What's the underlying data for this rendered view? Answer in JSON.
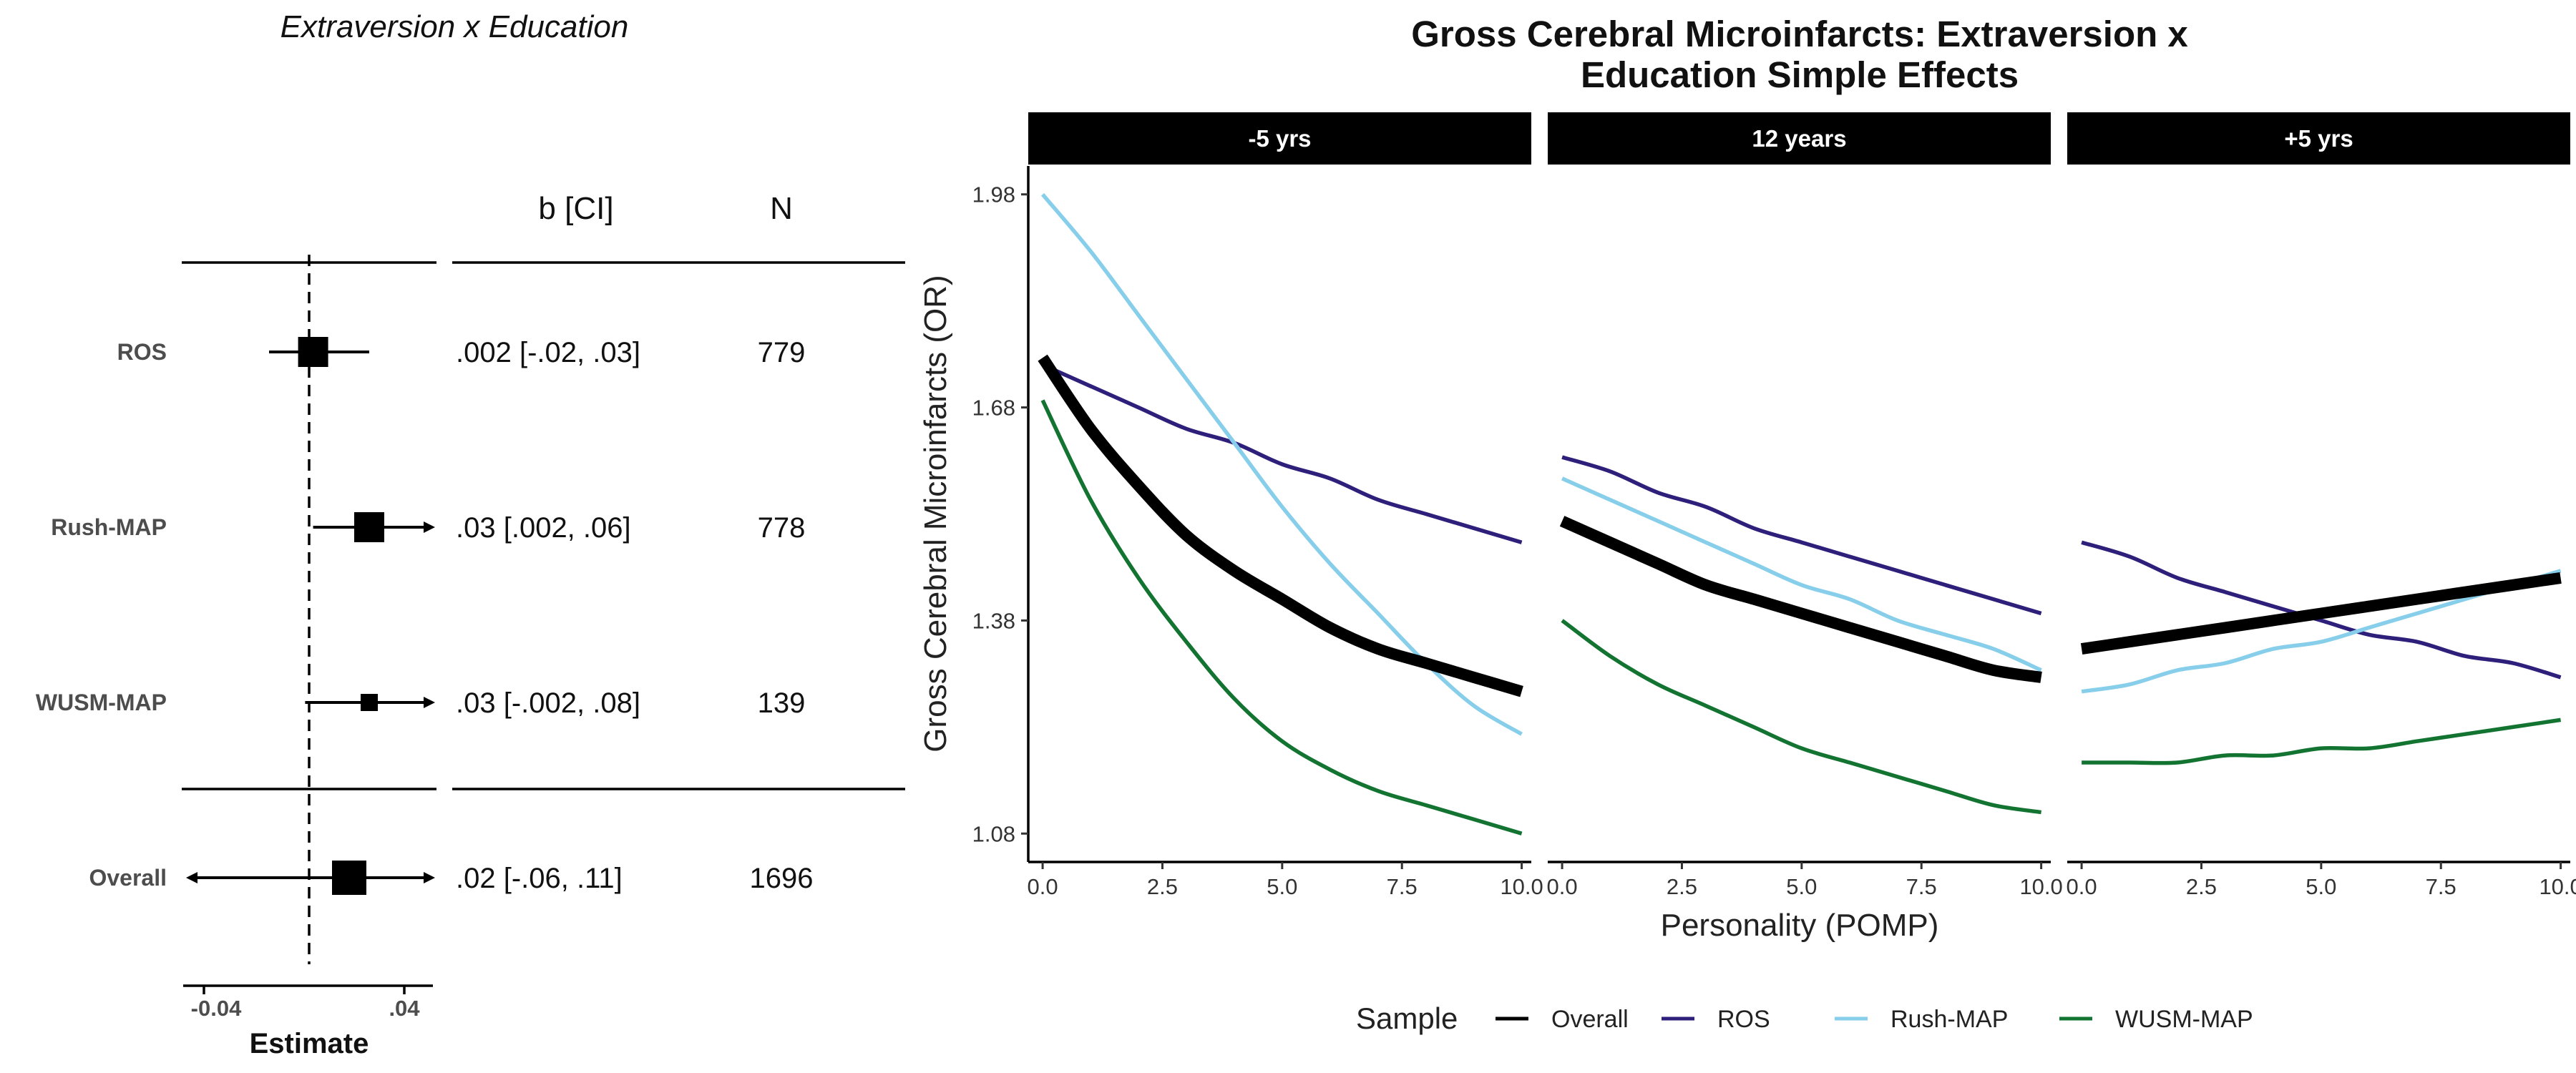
{
  "forest": {
    "title": "Extraversion x Education",
    "header_b": "b [CI]",
    "header_n": "N",
    "axis_title": "Estimate",
    "x_ticks": [
      "-0.04",
      ".04"
    ],
    "rows": [
      {
        "label": "ROS",
        "estimate": 0.002,
        "ci_low": -0.02,
        "ci_high": 0.03,
        "b_ci": ".002 [-.02, .03]",
        "n": "779"
      },
      {
        "label": "Rush-MAP",
        "estimate": 0.03,
        "ci_low": 0.002,
        "ci_high": 0.06,
        "b_ci": ".03 [.002, .06]",
        "n": "778"
      },
      {
        "label": "WUSM-MAP",
        "estimate": 0.03,
        "ci_low": -0.002,
        "ci_high": 0.08,
        "b_ci": ".03 [-.002, .08]",
        "n": "139"
      },
      {
        "label": "Overall",
        "estimate": 0.02,
        "ci_low": -0.06,
        "ci_high": 0.11,
        "b_ci": ".02 [-.06, .11]",
        "n": "1696"
      }
    ]
  },
  "chart_data": {
    "type": "line",
    "title": "Gross Cerebral Microinfarcts: Extraversion x Education Simple Effects",
    "title_lines": [
      "Gross Cerebral Microinfarcts: Extraversion x",
      "Education Simple Effects"
    ],
    "xlabel": "Personality (POMP)",
    "ylabel": "Gross Cerebral Microinfarcts (OR)",
    "x_ticks": [
      "0.0",
      "2.5",
      "5.0",
      "7.5",
      "10.0"
    ],
    "y_ticks": [
      "1.08",
      "1.38",
      "1.68",
      "1.98"
    ],
    "xlim": [
      -0.3,
      10.2
    ],
    "ylim": [
      1.04,
      2.02
    ],
    "legend": {
      "title": "Sample",
      "position": "bottom"
    },
    "grid": false,
    "x": [
      0,
      1,
      2,
      3,
      4,
      5,
      6,
      7,
      8,
      9,
      10
    ],
    "panels": [
      {
        "label": "-5 yrs",
        "series": [
          {
            "name": "Overall",
            "color": "#000000",
            "values": [
              1.75,
              1.65,
              1.57,
              1.5,
              1.45,
              1.41,
              1.37,
              1.34,
              1.32,
              1.3,
              1.28
            ]
          },
          {
            "name": "ROS",
            "color": "#2e1f7a",
            "values": [
              1.74,
              1.71,
              1.68,
              1.65,
              1.63,
              1.6,
              1.58,
              1.55,
              1.53,
              1.51,
              1.49
            ]
          },
          {
            "name": "Rush-MAP",
            "color": "#87ceeb",
            "values": [
              1.98,
              1.9,
              1.81,
              1.72,
              1.63,
              1.54,
              1.46,
              1.39,
              1.32,
              1.26,
              1.22
            ]
          },
          {
            "name": "WUSM-MAP",
            "color": "#137432",
            "values": [
              1.69,
              1.55,
              1.44,
              1.35,
              1.27,
              1.21,
              1.17,
              1.14,
              1.12,
              1.1,
              1.08
            ]
          }
        ]
      },
      {
        "label": "12 years",
        "series": [
          {
            "name": "Overall",
            "color": "#000000",
            "values": [
              1.52,
              1.49,
              1.46,
              1.43,
              1.41,
              1.39,
              1.37,
              1.35,
              1.33,
              1.31,
              1.3
            ]
          },
          {
            "name": "ROS",
            "color": "#2e1f7a",
            "values": [
              1.61,
              1.59,
              1.56,
              1.54,
              1.51,
              1.49,
              1.47,
              1.45,
              1.43,
              1.41,
              1.39
            ]
          },
          {
            "name": "Rush-MAP",
            "color": "#87ceeb",
            "values": [
              1.58,
              1.55,
              1.52,
              1.49,
              1.46,
              1.43,
              1.41,
              1.38,
              1.36,
              1.34,
              1.31
            ]
          },
          {
            "name": "WUSM-MAP",
            "color": "#137432",
            "values": [
              1.38,
              1.33,
              1.29,
              1.26,
              1.23,
              1.2,
              1.18,
              1.16,
              1.14,
              1.12,
              1.11
            ]
          }
        ]
      },
      {
        "label": "+5 yrs",
        "series": [
          {
            "name": "Overall",
            "color": "#000000",
            "values": [
              1.34,
              1.35,
              1.36,
              1.37,
              1.38,
              1.39,
              1.4,
              1.41,
              1.42,
              1.43,
              1.44
            ]
          },
          {
            "name": "ROS",
            "color": "#2e1f7a",
            "values": [
              1.49,
              1.47,
              1.44,
              1.42,
              1.4,
              1.38,
              1.36,
              1.35,
              1.33,
              1.32,
              1.3
            ]
          },
          {
            "name": "Rush-MAP",
            "color": "#87ceeb",
            "values": [
              1.28,
              1.29,
              1.31,
              1.32,
              1.34,
              1.35,
              1.37,
              1.39,
              1.41,
              1.43,
              1.45
            ]
          },
          {
            "name": "WUSM-MAP",
            "color": "#137432",
            "values": [
              1.18,
              1.18,
              1.18,
              1.19,
              1.19,
              1.2,
              1.2,
              1.21,
              1.22,
              1.23,
              1.24
            ]
          }
        ]
      }
    ]
  }
}
